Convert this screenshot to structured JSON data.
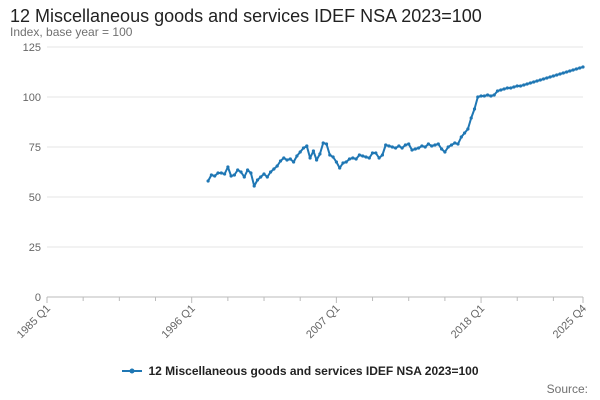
{
  "chart_data": {
    "type": "line",
    "title": "12 Miscellaneous goods and services IDEF NSA 2023=100",
    "ylabel": "Index, base year = 100",
    "xlabel": "",
    "ylim": [
      0,
      125
    ],
    "yticks": [
      0,
      25,
      50,
      75,
      100,
      125
    ],
    "xlim": [
      1985,
      2025.75
    ],
    "xticks": [
      {
        "label": "1985 Q1",
        "value": 1985
      },
      {
        "label": "1996 Q1",
        "value": 1996
      },
      {
        "label": "2007 Q1",
        "value": 2007
      },
      {
        "label": "2018 Q1",
        "value": 2018
      },
      {
        "label": "2025 Q4",
        "value": 2025.75
      }
    ],
    "minor_xticks": [
      1987.75,
      1990.5,
      1993.25,
      1998.75,
      2001.5,
      2004.25,
      2009.75,
      2012.5,
      2015.25,
      2020.75,
      2023.5
    ],
    "grid": true,
    "legend_position": "bottom",
    "color": "#1f77b4",
    "series": [
      {
        "name": "12 Miscellaneous goods and services IDEF NSA 2023=100",
        "x": [
          1997.25,
          1997.5,
          1997.75,
          1998,
          1998.25,
          1998.5,
          1998.75,
          1999,
          1999.25,
          1999.5,
          1999.75,
          2000,
          2000.25,
          2000.5,
          2000.75,
          2001,
          2001.25,
          2001.5,
          2001.75,
          2002,
          2002.25,
          2002.5,
          2002.75,
          2003,
          2003.25,
          2003.5,
          2003.75,
          2004,
          2004.25,
          2004.5,
          2004.75,
          2005,
          2005.25,
          2005.5,
          2005.75,
          2006,
          2006.25,
          2006.5,
          2006.75,
          2007,
          2007.25,
          2007.5,
          2007.75,
          2008,
          2008.25,
          2008.5,
          2008.75,
          2009,
          2009.25,
          2009.5,
          2009.75,
          2010,
          2010.25,
          2010.5,
          2010.75,
          2011,
          2011.25,
          2011.5,
          2011.75,
          2012,
          2012.25,
          2012.5,
          2012.75,
          2013,
          2013.25,
          2013.5,
          2013.75,
          2014,
          2014.25,
          2014.5,
          2014.75,
          2015,
          2015.25,
          2015.5,
          2015.75,
          2016,
          2016.25,
          2016.5,
          2016.75,
          2017,
          2017.25,
          2017.5,
          2017.75,
          2018,
          2018.25,
          2018.5,
          2018.75,
          2019,
          2019.25,
          2019.5,
          2019.75,
          2020,
          2020.25,
          2020.5,
          2020.75,
          2021,
          2021.25,
          2021.5,
          2021.75,
          2022,
          2022.25,
          2022.5,
          2022.75,
          2023,
          2023.25,
          2023.5,
          2023.75,
          2024,
          2024.25,
          2024.5,
          2024.75,
          2025,
          2025.25,
          2025.5,
          2025.75
        ],
        "y": [
          58,
          61,
          60.5,
          62,
          62,
          61.5,
          65,
          60.5,
          61,
          63.5,
          62.5,
          60,
          63.5,
          62,
          55.5,
          58.5,
          60,
          61.5,
          60,
          62.5,
          64,
          65.5,
          68,
          69.5,
          68.5,
          69,
          67.5,
          70.5,
          72.5,
          74.5,
          75.5,
          69.5,
          73,
          68.5,
          71.5,
          77,
          76.5,
          71,
          70,
          67.5,
          64.5,
          67,
          67.5,
          69,
          69.5,
          69,
          71,
          70.5,
          70,
          69.5,
          72,
          72,
          69.5,
          71,
          76,
          75.5,
          75,
          74.5,
          75.5,
          74.5,
          76,
          76.5,
          73.5,
          74,
          74.5,
          75.5,
          75,
          76.5,
          75.5,
          76,
          76.5,
          74,
          72.5,
          75,
          76,
          77,
          76.5,
          80,
          82,
          84,
          89.5,
          94,
          100,
          100.5,
          100.5,
          101,
          100.5,
          101,
          103,
          103.5,
          104,
          104.5,
          104.5,
          105,
          105.5,
          105.5,
          106,
          106.5,
          107,
          107.5,
          108,
          108.5,
          109,
          109.5,
          110,
          110.5,
          111,
          111.5,
          112,
          112.5,
          113,
          113.5,
          114,
          114.5,
          115
        ]
      }
    ]
  },
  "source_label": "Source:"
}
